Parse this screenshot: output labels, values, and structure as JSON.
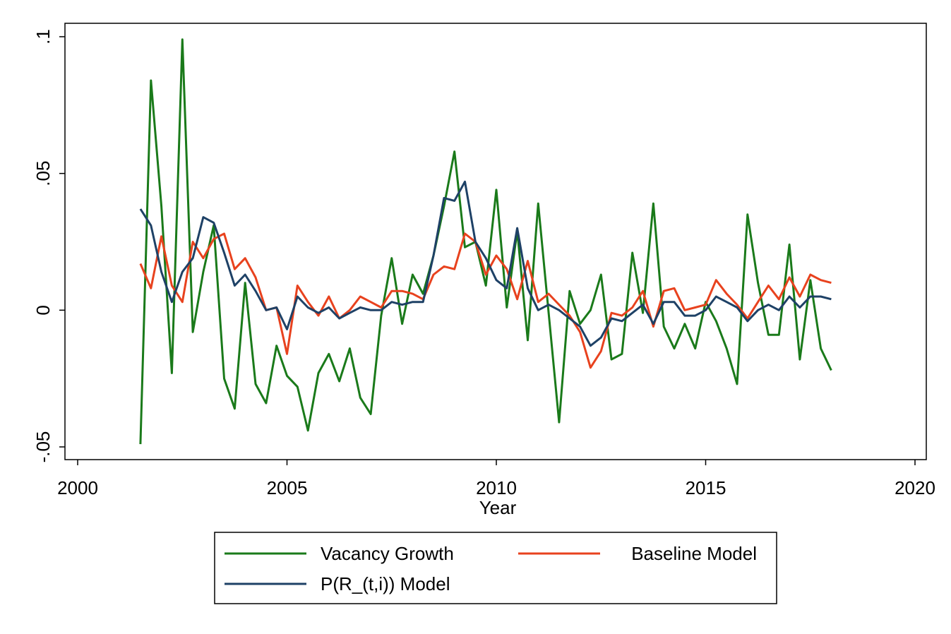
{
  "chart_data": {
    "type": "line",
    "title": "",
    "xlabel": "Year",
    "ylabel": "",
    "xlim": [
      2000,
      2020
    ],
    "ylim": [
      -0.05,
      0.1
    ],
    "x_ticks": [
      2000,
      2005,
      2010,
      2015,
      2020
    ],
    "x_tick_labels": [
      "2000",
      "2005",
      "2010",
      "2015",
      "2020"
    ],
    "y_ticks": [
      -0.05,
      0,
      0.05,
      0.1
    ],
    "y_tick_labels": [
      "-.05",
      "0",
      ".05",
      ".1"
    ],
    "grid": false,
    "legend_placement": "bottom",
    "x": [
      2001.5,
      2001.75,
      2002,
      2002.25,
      2002.5,
      2002.75,
      2003,
      2003.25,
      2003.5,
      2003.75,
      2004,
      2004.25,
      2004.5,
      2004.75,
      2005,
      2005.25,
      2005.5,
      2005.75,
      2006,
      2006.25,
      2006.5,
      2006.75,
      2007,
      2007.25,
      2007.5,
      2007.75,
      2008,
      2008.25,
      2008.5,
      2008.75,
      2009,
      2009.25,
      2009.5,
      2009.75,
      2010,
      2010.25,
      2010.5,
      2010.75,
      2011,
      2011.25,
      2011.5,
      2011.75,
      2012,
      2012.25,
      2012.5,
      2012.75,
      2013,
      2013.25,
      2013.5,
      2013.75,
      2014,
      2014.25,
      2014.5,
      2014.75,
      2015,
      2015.25,
      2015.5,
      2015.75,
      2016,
      2016.25,
      2016.5,
      2016.75,
      2017,
      2017.25,
      2017.5,
      2017.75,
      2018
    ],
    "series": [
      {
        "name": "Vacancy Growth",
        "color": "#1a7a1a",
        "values": [
          -0.049,
          0.084,
          0.038,
          -0.023,
          0.099,
          -0.008,
          0.014,
          0.031,
          -0.025,
          -0.036,
          0.01,
          -0.027,
          -0.034,
          -0.013,
          -0.024,
          -0.028,
          -0.044,
          -0.023,
          -0.016,
          -0.026,
          -0.014,
          -0.032,
          -0.038,
          -0.002,
          0.019,
          -0.005,
          0.013,
          0.006,
          0.02,
          0.038,
          0.058,
          0.023,
          0.025,
          0.009,
          0.044,
          0.001,
          0.029,
          -0.011,
          0.039,
          -0.001,
          -0.041,
          0.007,
          -0.005,
          0.0,
          0.013,
          -0.018,
          -0.016,
          0.021,
          -0.001,
          0.039,
          -0.006,
          -0.014,
          -0.005,
          -0.014,
          0.003,
          -0.004,
          -0.014,
          -0.027,
          0.035,
          0.01,
          -0.009,
          -0.009,
          0.024,
          -0.018,
          0.011,
          -0.014,
          -0.022
        ]
      },
      {
        "name": "Baseline Model",
        "color": "#e8421e",
        "values": [
          0.017,
          0.008,
          0.027,
          0.009,
          0.003,
          0.025,
          0.019,
          0.026,
          0.028,
          0.015,
          0.019,
          0.012,
          0.0,
          0.001,
          -0.016,
          0.009,
          0.003,
          -0.002,
          0.005,
          -0.003,
          0.0,
          0.005,
          0.003,
          0.001,
          0.007,
          0.007,
          0.006,
          0.004,
          0.013,
          0.016,
          0.015,
          0.028,
          0.025,
          0.013,
          0.02,
          0.015,
          0.004,
          0.018,
          0.003,
          0.006,
          0.002,
          -0.002,
          -0.008,
          -0.021,
          -0.015,
          -0.001,
          -0.002,
          0.001,
          0.007,
          -0.006,
          0.007,
          0.008,
          0.0,
          0.001,
          0.002,
          0.011,
          0.006,
          0.002,
          -0.003,
          0.003,
          0.009,
          0.004,
          0.012,
          0.005,
          0.013,
          0.011,
          0.01
        ]
      },
      {
        "name": "P(R_(t,i)) Model",
        "color": "#1e4166",
        "values": [
          0.037,
          0.031,
          0.014,
          0.003,
          0.014,
          0.019,
          0.034,
          0.032,
          0.021,
          0.009,
          0.013,
          0.007,
          0.0,
          0.001,
          -0.007,
          0.005,
          0.001,
          -0.001,
          0.001,
          -0.003,
          -0.001,
          0.001,
          0.0,
          0.0,
          0.003,
          0.002,
          0.003,
          0.003,
          0.02,
          0.041,
          0.04,
          0.047,
          0.025,
          0.019,
          0.011,
          0.008,
          0.03,
          0.008,
          0.0,
          0.002,
          0.0,
          -0.003,
          -0.006,
          -0.013,
          -0.01,
          -0.003,
          -0.004,
          -0.001,
          0.002,
          -0.005,
          0.003,
          0.003,
          -0.002,
          -0.002,
          0.0,
          0.005,
          0.003,
          0.001,
          -0.004,
          0.0,
          0.002,
          0.0,
          0.005,
          0.001,
          0.005,
          0.005,
          0.004
        ]
      }
    ]
  }
}
